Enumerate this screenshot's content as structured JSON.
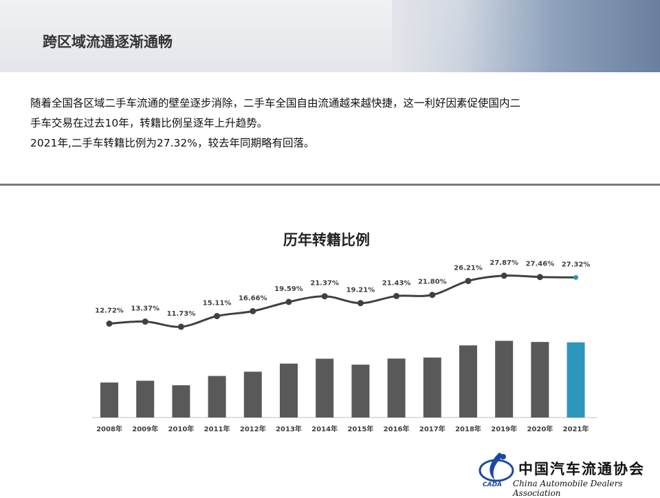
{
  "header": {
    "title": "跨区域流通逐渐通畅"
  },
  "intro": {
    "line1": "随着全国各区域二手车流通的壁垒逐步消除，二手车全国自由流通越来越快捷，这一利好因素促使国内二",
    "line2": "手车交易在过去10年，转籍比例呈逐年上升趋势。",
    "line3": "2021年,二手车转籍比例为27.32%，较去年同期略有回落。"
  },
  "chart_data": {
    "type": "bar",
    "title": "历年转籍比例",
    "categories": [
      "2008年",
      "2009年",
      "2010年",
      "2011年",
      "2012年",
      "2013年",
      "2014年",
      "2015年",
      "2016年",
      "2017年",
      "2018年",
      "2019年",
      "2020年",
      "2021年"
    ],
    "values": [
      12.72,
      13.37,
      11.73,
      15.11,
      16.66,
      19.59,
      21.37,
      19.21,
      21.43,
      21.8,
      26.21,
      27.87,
      27.46,
      27.32
    ],
    "labels": [
      "12.72%",
      "13.37%",
      "11.73%",
      "15.11%",
      "16.66%",
      "19.59%",
      "21.37%",
      "19.21%",
      "21.43%",
      "21.80%",
      "26.21%",
      "27.87%",
      "27.46%",
      "27.32%"
    ],
    "line_overlay": true,
    "grid": false,
    "colors": {
      "bar": "#595959",
      "highlight_bar": "#2e95bd",
      "line": "#404040",
      "highlight_marker": "#2e95bd"
    }
  },
  "logo": {
    "cn": "中国汽车流通协会",
    "en": "China Automobile Dealers Association",
    "abbr": "CADA"
  }
}
